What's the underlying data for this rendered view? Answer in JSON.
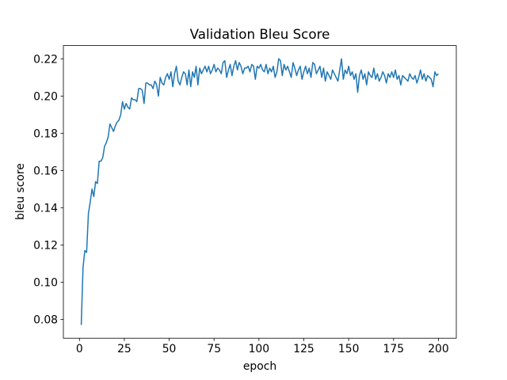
{
  "chart_data": {
    "type": "line",
    "title": "Validation Bleu Score",
    "xlabel": "epoch",
    "ylabel": "bleu score",
    "x": [
      1,
      2,
      3,
      4,
      5,
      6,
      7,
      8,
      9,
      10,
      11,
      12,
      13,
      14,
      15,
      16,
      17,
      18,
      19,
      20,
      21,
      22,
      23,
      24,
      25,
      26,
      27,
      28,
      29,
      30,
      31,
      32,
      33,
      34,
      35,
      36,
      37,
      38,
      39,
      40,
      41,
      42,
      43,
      44,
      45,
      46,
      47,
      48,
      49,
      50,
      51,
      52,
      53,
      54,
      55,
      56,
      57,
      58,
      59,
      60,
      61,
      62,
      63,
      64,
      65,
      66,
      67,
      68,
      69,
      70,
      71,
      72,
      73,
      74,
      75,
      76,
      77,
      78,
      79,
      80,
      81,
      82,
      83,
      84,
      85,
      86,
      87,
      88,
      89,
      90,
      91,
      92,
      93,
      94,
      95,
      96,
      97,
      98,
      99,
      100,
      101,
      102,
      103,
      104,
      105,
      106,
      107,
      108,
      109,
      110,
      111,
      112,
      113,
      114,
      115,
      116,
      117,
      118,
      119,
      120,
      121,
      122,
      123,
      124,
      125,
      126,
      127,
      128,
      129,
      130,
      131,
      132,
      133,
      134,
      135,
      136,
      137,
      138,
      139,
      140,
      141,
      142,
      143,
      144,
      145,
      146,
      147,
      148,
      149,
      150,
      151,
      152,
      153,
      154,
      155,
      156,
      157,
      158,
      159,
      160,
      161,
      162,
      163,
      164,
      165,
      166,
      167,
      168,
      169,
      170,
      171,
      172,
      173,
      174,
      175,
      176,
      177,
      178,
      179,
      180,
      181,
      182,
      183,
      184,
      185,
      186,
      187,
      188,
      189,
      190,
      191,
      192,
      193,
      194,
      195,
      196,
      197,
      198,
      199,
      200
    ],
    "series": [
      {
        "color": "#1f77b4",
        "values": [
          0.077,
          0.108,
          0.117,
          0.116,
          0.137,
          0.143,
          0.15,
          0.146,
          0.154,
          0.153,
          0.165,
          0.165,
          0.167,
          0.173,
          0.175,
          0.178,
          0.185,
          0.183,
          0.181,
          0.184,
          0.186,
          0.187,
          0.19,
          0.197,
          0.193,
          0.196,
          0.194,
          0.193,
          0.199,
          0.198,
          0.198,
          0.197,
          0.204,
          0.204,
          0.203,
          0.196,
          0.207,
          0.207,
          0.206,
          0.206,
          0.204,
          0.208,
          0.206,
          0.2,
          0.21,
          0.207,
          0.206,
          0.21,
          0.212,
          0.209,
          0.213,
          0.205,
          0.212,
          0.216,
          0.208,
          0.206,
          0.21,
          0.213,
          0.212,
          0.206,
          0.214,
          0.205,
          0.213,
          0.21,
          0.216,
          0.206,
          0.215,
          0.212,
          0.214,
          0.216,
          0.213,
          0.216,
          0.212,
          0.214,
          0.217,
          0.213,
          0.215,
          0.214,
          0.212,
          0.218,
          0.219,
          0.21,
          0.214,
          0.217,
          0.211,
          0.216,
          0.219,
          0.214,
          0.218,
          0.216,
          0.212,
          0.215,
          0.215,
          0.216,
          0.213,
          0.217,
          0.216,
          0.209,
          0.216,
          0.215,
          0.217,
          0.214,
          0.213,
          0.217,
          0.212,
          0.215,
          0.213,
          0.216,
          0.21,
          0.213,
          0.22,
          0.219,
          0.211,
          0.217,
          0.214,
          0.216,
          0.213,
          0.21,
          0.218,
          0.215,
          0.211,
          0.214,
          0.216,
          0.209,
          0.213,
          0.216,
          0.212,
          0.215,
          0.21,
          0.218,
          0.217,
          0.212,
          0.214,
          0.216,
          0.21,
          0.215,
          0.208,
          0.213,
          0.211,
          0.209,
          0.214,
          0.212,
          0.21,
          0.208,
          0.214,
          0.22,
          0.209,
          0.214,
          0.212,
          0.216,
          0.211,
          0.213,
          0.209,
          0.212,
          0.202,
          0.211,
          0.214,
          0.209,
          0.212,
          0.206,
          0.213,
          0.211,
          0.21,
          0.215,
          0.209,
          0.212,
          0.208,
          0.21,
          0.213,
          0.211,
          0.207,
          0.212,
          0.21,
          0.213,
          0.21,
          0.214,
          0.209,
          0.211,
          0.206,
          0.211,
          0.21,
          0.209,
          0.208,
          0.212,
          0.21,
          0.209,
          0.211,
          0.207,
          0.21,
          0.214,
          0.209,
          0.212,
          0.208,
          0.211,
          0.21,
          0.209,
          0.205,
          0.213,
          0.211,
          0.212
        ]
      }
    ],
    "xlim": [
      -8.95,
      209.95
    ],
    "xticks": [
      0,
      25,
      50,
      75,
      100,
      125,
      150,
      175,
      200
    ],
    "ylim": [
      0.0699,
      0.2271
    ],
    "yticks": [
      0.08,
      {
        "value": 0.1,
        "label": "0.10"
      },
      0.12,
      0.14,
      0.16,
      0.18,
      {
        "value": 0.2,
        "label": "0.20"
      },
      0.22
    ],
    "grid": false
  }
}
